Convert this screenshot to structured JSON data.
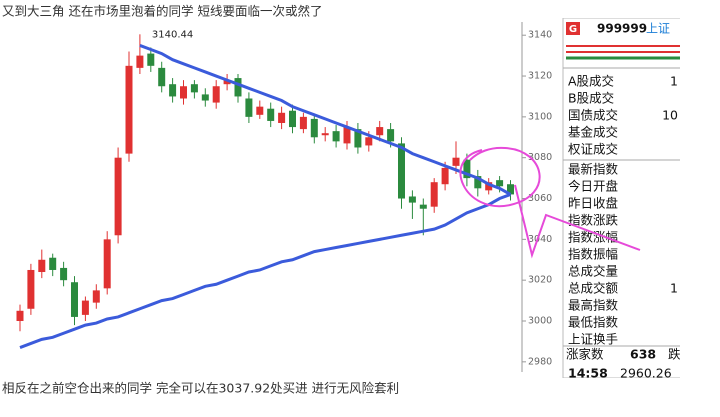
{
  "caption_top": "又到大三角 还在市场里泡着的同学 短线要面临一次或然了",
  "caption_bottom": "相反在之前空仓出来的同学 完全可以在3037.92处买进 进行无风险套利",
  "chart_data": {
    "type": "candlestick",
    "peak_label": "3140.44",
    "ylim": [
      2976,
      3145
    ],
    "yticks": [
      2980,
      3000,
      3020,
      3040,
      3060,
      3080,
      3100,
      3120,
      3140
    ],
    "up_color": "#e03131",
    "down_color": "#2b8a3e",
    "open": [
      3000,
      3006,
      3024,
      3031,
      3026,
      3019,
      3003,
      3009,
      3016,
      3042,
      3082,
      3124,
      3131,
      3124,
      3116,
      3109,
      3116,
      3111,
      3107,
      3116,
      3119,
      3109,
      3101,
      3104,
      3097,
      3103,
      3094,
      3099,
      3091,
      3093,
      3087,
      3094,
      3086,
      3091,
      3094,
      3087,
      3061,
      3057,
      3056,
      3067,
      3076,
      3079,
      3071,
      3064,
      3069,
      3067
    ],
    "high": [
      3008,
      3028,
      3035,
      3033,
      3029,
      3022,
      3012,
      3018,
      3044,
      3085,
      3132,
      3140.44,
      3134,
      3127,
      3119,
      3118,
      3118,
      3114,
      3118,
      3121,
      3121,
      3112,
      3108,
      3107,
      3105,
      3106,
      3102,
      3101,
      3095,
      3096,
      3098,
      3097,
      3093,
      3098,
      3097,
      3090,
      3064,
      3060,
      3070,
      3078,
      3088,
      3082,
      3074,
      3070,
      3071,
      3069
    ],
    "low": [
      2995,
      3003,
      3021,
      3022,
      3017,
      2998,
      3000,
      3006,
      3013,
      3038,
      3078,
      3121,
      3122,
      3112,
      3107,
      3106,
      3109,
      3105,
      3104,
      3113,
      3107,
      3097,
      3099,
      3095,
      3094,
      3092,
      3092,
      3087,
      3088,
      3085,
      3084,
      3082,
      3083,
      3088,
      3085,
      3055,
      3050,
      3042,
      3053,
      3064,
      3072,
      3066,
      3061,
      3062,
      3063,
      3059
    ],
    "close": [
      3005,
      3025,
      3030,
      3025,
      3020,
      3002,
      3010,
      3015,
      3040,
      3080,
      3125,
      3130,
      3125,
      3115,
      3110,
      3115,
      3112,
      3108,
      3115,
      3118,
      3110,
      3100,
      3105,
      3098,
      3102,
      3095,
      3100,
      3090,
      3092,
      3088,
      3095,
      3085,
      3090,
      3095,
      3088,
      3060,
      3058,
      3055,
      3068,
      3075,
      3080,
      3070,
      3065,
      3068,
      3066,
      3062
    ],
    "lines": [
      {
        "color": "#3b5bdb",
        "values": [
          null,
          null,
          null,
          null,
          null,
          null,
          null,
          null,
          null,
          null,
          null,
          3135,
          3133,
          3131,
          3128,
          3126,
          3124,
          3122,
          3120,
          3118,
          3116,
          3114,
          3112,
          3110,
          3108,
          3105,
          3103,
          3101,
          3099,
          3097,
          3095,
          3093,
          3091,
          3089,
          3087,
          3085,
          3082,
          3080,
          3078,
          3076,
          3074,
          3072,
          3070,
          3067,
          3065,
          3062
        ]
      },
      {
        "color": "#3b5bdb",
        "values": [
          2987,
          2989,
          2991,
          2992,
          2994,
          2996,
          2998,
          2999,
          3001,
          3002,
          3004,
          3006,
          3008,
          3010,
          3011,
          3013,
          3015,
          3017,
          3018,
          3020,
          3022,
          3024,
          3025,
          3027,
          3029,
          3030,
          3032,
          3034,
          3035,
          3036,
          3037,
          3038,
          3039,
          3040,
          3041,
          3042,
          3043,
          3044,
          3045,
          3047,
          3050,
          3053,
          3055,
          3057,
          3060,
          3062
        ]
      }
    ]
  },
  "panel": {
    "badge": "G",
    "code": "999999",
    "market": "上证",
    "rows": [
      {
        "label": "A股成交",
        "value": "1"
      },
      {
        "label": "B股成交"
      },
      {
        "label": "国债成交",
        "value": "10"
      },
      {
        "label": "基金成交"
      },
      {
        "label": "权证成交"
      },
      {
        "label": "最新指数"
      },
      {
        "label": "今日开盘"
      },
      {
        "label": "昨日收盘"
      },
      {
        "label": "指数涨跌"
      },
      {
        "label": "指数涨幅"
      },
      {
        "label": "指数振幅"
      },
      {
        "label": "总成交量"
      },
      {
        "label": "总成交额",
        "value": "1"
      },
      {
        "label": "最高指数"
      },
      {
        "label": "最低指数"
      },
      {
        "label": "上证换手"
      }
    ],
    "advance_label": "涨家数",
    "advance_count": "638",
    "decline_label": "跌",
    "time": "14:58",
    "last": "2960.26"
  }
}
